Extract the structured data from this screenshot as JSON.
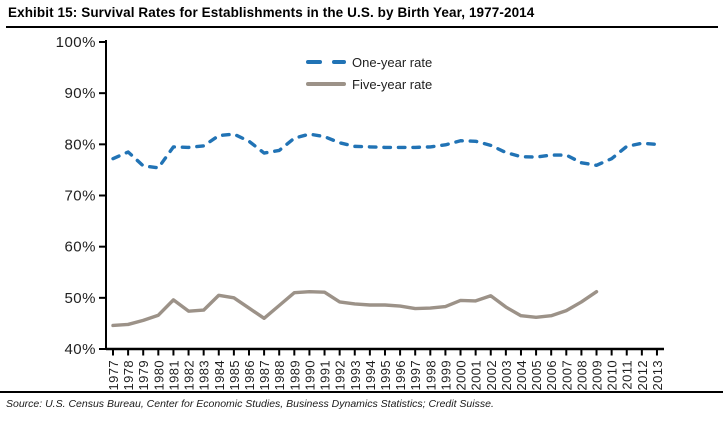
{
  "title": "Exhibit 15: Survival Rates for Establishments in the U.S. by Birth Year, 1977-2014",
  "source_note": "Source: U.S. Census Bureau, Center for Economic Studies, Business Dynamics Statistics; Credit Suisse.",
  "colors": {
    "one_year_rate": "#2173B5",
    "five_year_rate": "#9C9288",
    "axis": "#000000",
    "tick_text": "#1F1F1F"
  },
  "chart_data": {
    "type": "line",
    "title": "Exhibit 15: Survival Rates for Establishments in the U.S. by Birth Year, 1977-2014",
    "categories": [
      "1977",
      "1978",
      "1979",
      "1980",
      "1981",
      "1982",
      "1983",
      "1984",
      "1985",
      "1986",
      "1987",
      "1988",
      "1989",
      "1990",
      "1991",
      "1992",
      "1993",
      "1994",
      "1995",
      "1996",
      "1997",
      "1998",
      "1999",
      "2000",
      "2001",
      "2002",
      "2003",
      "2004",
      "2005",
      "2006",
      "2007",
      "2008",
      "2009",
      "2010",
      "2011",
      "2012",
      "2013"
    ],
    "series": [
      {
        "name": "One-year rate",
        "style": "dashed",
        "color": "#2173B5",
        "values": [
          77.2,
          78.5,
          75.8,
          75.4,
          79.5,
          79.4,
          79.7,
          81.7,
          82.0,
          80.6,
          78.3,
          78.8,
          81.2,
          82.0,
          81.5,
          80.3,
          79.6,
          79.5,
          79.4,
          79.4,
          79.4,
          79.5,
          79.9,
          80.7,
          80.6,
          79.8,
          78.4,
          77.6,
          77.5,
          77.9,
          77.9,
          76.4,
          75.9,
          77.2,
          79.6,
          80.2,
          80.0
        ]
      },
      {
        "name": "Five-year rate",
        "style": "solid",
        "color": "#9C9288",
        "values": [
          44.6,
          44.8,
          45.6,
          46.6,
          49.6,
          47.4,
          47.6,
          50.5,
          50.0,
          48.0,
          46.0,
          48.5,
          51.0,
          51.2,
          51.1,
          49.2,
          48.8,
          48.6,
          48.6,
          48.4,
          47.9,
          48.0,
          48.3,
          49.5,
          49.4,
          50.4,
          48.2,
          46.5,
          46.2,
          46.5,
          47.5,
          49.2,
          51.2,
          null,
          null,
          null,
          null
        ]
      }
    ],
    "ylim": [
      40,
      100
    ],
    "ytick_step": 10,
    "ytick_suffix": "%",
    "ytick_labels": [
      "100%",
      "90%",
      "80%",
      "70%",
      "60%",
      "50%",
      "40%"
    ],
    "xlabel": "",
    "ylabel": "",
    "grid": false,
    "legend_position": "top-center-inside",
    "x_labels_rotated": true
  }
}
